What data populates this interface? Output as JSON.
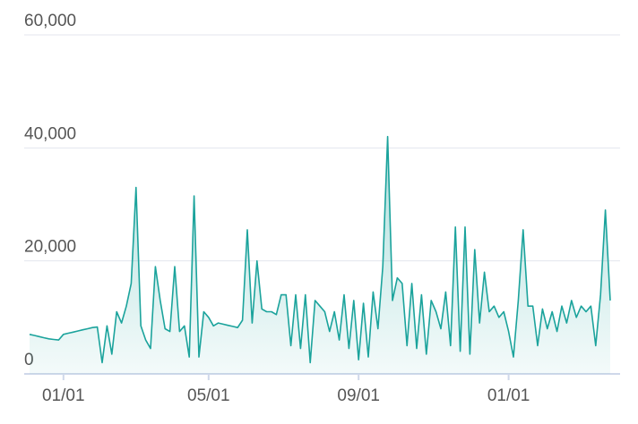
{
  "chart_data": {
    "type": "area",
    "categories": [
      null,
      null,
      null,
      null,
      null,
      null,
      null,
      "01/01",
      null,
      null,
      null,
      null,
      null,
      null,
      null,
      null,
      null,
      null,
      null,
      null,
      null,
      null,
      null,
      null,
      null,
      null,
      null,
      null,
      null,
      null,
      null,
      null,
      null,
      null,
      null,
      null,
      null,
      "05/01",
      null,
      null,
      null,
      null,
      null,
      null,
      null,
      null,
      null,
      null,
      null,
      null,
      null,
      null,
      null,
      null,
      null,
      null,
      null,
      null,
      null,
      null,
      null,
      null,
      null,
      null,
      null,
      null,
      null,
      null,
      "09/01",
      null,
      null,
      null,
      null,
      null,
      null,
      null,
      null,
      null,
      null,
      null,
      null,
      null,
      null,
      null,
      null,
      null,
      null,
      null,
      null,
      null,
      null,
      null,
      null,
      null,
      null,
      null,
      null,
      null,
      null,
      "01/01",
      null,
      null,
      null,
      null,
      null,
      null,
      null,
      null,
      null,
      null,
      null,
      null,
      null,
      null,
      null,
      null,
      null,
      null,
      null,
      null,
      null
    ],
    "values": [
      7000,
      6800,
      6600,
      6400,
      6200,
      6100,
      6000,
      7000,
      7200,
      7400,
      7600,
      7800,
      8000,
      8200,
      8300,
      2000,
      8500,
      3500,
      11000,
      9000,
      12000,
      16000,
      33000,
      8500,
      6000,
      4500,
      19000,
      13000,
      8000,
      7500,
      19000,
      7500,
      8500,
      3000,
      31500,
      3000,
      11000,
      10000,
      8500,
      9000,
      8800,
      8600,
      8400,
      8200,
      9500,
      25500,
      9000,
      20000,
      11500,
      11000,
      11000,
      10500,
      14000,
      14000,
      5000,
      14000,
      4500,
      14000,
      2000,
      13000,
      12000,
      11000,
      7500,
      11000,
      6000,
      14000,
      4500,
      13000,
      2500,
      12500,
      3000,
      14500,
      8000,
      19000,
      42000,
      13000,
      17000,
      16000,
      5000,
      16000,
      4500,
      14000,
      3500,
      13000,
      11000,
      8000,
      14500,
      5000,
      26000,
      4000,
      26000,
      3500,
      22000,
      9000,
      18000,
      11000,
      12000,
      10000,
      11000,
      7500,
      3000,
      13000,
      25500,
      12000,
      12000,
      5000,
      11500,
      8000,
      11000,
      7500,
      12000,
      9000,
      13000,
      10000,
      12000,
      11000,
      12000,
      5000,
      14000,
      29000,
      13000
    ],
    "color": "#1ba39c",
    "ylim": [
      0,
      60000
    ],
    "yticks": [
      0,
      {
        "value": 20000,
        "label": "20,000"
      },
      {
        "value": 40000,
        "label": "40,000"
      },
      {
        "value": 60000,
        "label": "60,000"
      }
    ],
    "grid": true
  }
}
